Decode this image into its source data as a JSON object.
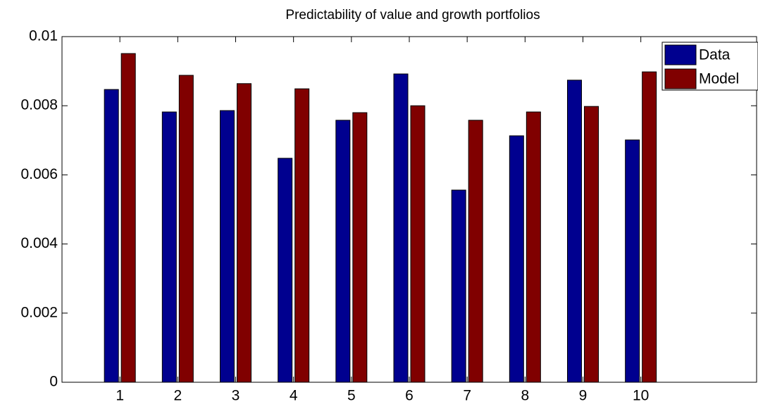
{
  "chart_data": {
    "type": "bar",
    "title": "Predictability of value and growth portfolios",
    "x": [
      1,
      2,
      3,
      4,
      5,
      6,
      7,
      8,
      9,
      10
    ],
    "series": [
      {
        "name": "Data",
        "color": "#00008f",
        "values": [
          0.00847,
          0.00782,
          0.00786,
          0.00648,
          0.00758,
          0.00892,
          0.00556,
          0.00713,
          0.00874,
          0.00701
        ]
      },
      {
        "name": "Model",
        "color": "#800000",
        "values": [
          0.00951,
          0.00888,
          0.00864,
          0.00849,
          0.0078,
          0.008,
          0.00758,
          0.00782,
          0.00798,
          0.00898
        ]
      }
    ],
    "xlim": [
      0,
      12
    ],
    "xticks": [
      1,
      2,
      3,
      4,
      5,
      6,
      7,
      8,
      9,
      10
    ],
    "ylim": [
      0,
      0.01
    ],
    "yticks": [
      0,
      0.002,
      0.004,
      0.006,
      0.008,
      0.01
    ],
    "grid": false,
    "legend": "top-right"
  }
}
